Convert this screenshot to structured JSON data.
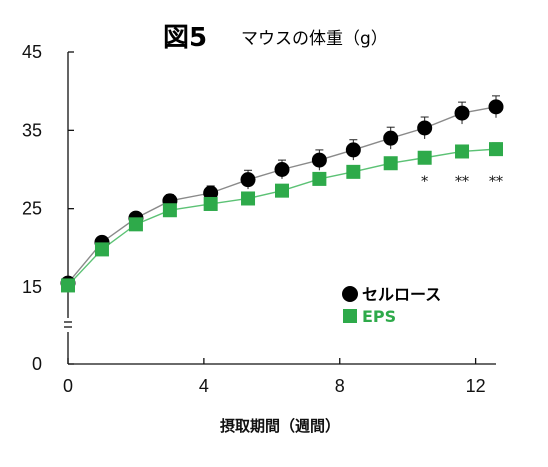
{
  "figure_label": "図5",
  "title": "マウスの体重（g）",
  "colors": {
    "series1": "#000000",
    "series2": "#2eaa4a",
    "series1_line": "#8a8a8a",
    "series2_line": "#5cc275",
    "axis": "#111111"
  },
  "chart_data": {
    "type": "line",
    "xlabel": "摂取期間（週間）",
    "ylabel": "",
    "xlim": [
      0,
      12.6
    ],
    "xticks": [
      0,
      4,
      8,
      12
    ],
    "y_axis_break": true,
    "y_ticks": [
      {
        "value": 0,
        "label": "0"
      },
      {
        "value": 15,
        "label": "15"
      },
      {
        "value": 25,
        "label": "25"
      },
      {
        "value": 35,
        "label": "35"
      },
      {
        "value": 45,
        "label": "45"
      }
    ],
    "upper_ylim": [
      15,
      45
    ],
    "grid": false,
    "legend": "right",
    "series": [
      {
        "name": "セルロース",
        "marker": "circle",
        "x": [
          0,
          1,
          2,
          3,
          4.2,
          5.3,
          6.3,
          7.4,
          8.4,
          9.5,
          10.5,
          11.6,
          12.6
        ],
        "y": [
          15.5,
          20.7,
          23.8,
          26.0,
          27.0,
          28.7,
          30.0,
          31.2,
          32.5,
          34.0,
          35.3,
          37.2,
          38.0
        ],
        "err": [
          0.5,
          0.6,
          0.6,
          0.8,
          0.9,
          1.2,
          1.2,
          1.3,
          1.3,
          1.4,
          1.4,
          1.4,
          1.4
        ]
      },
      {
        "name": "EPS",
        "marker": "square",
        "x": [
          0,
          1,
          2,
          3,
          4.2,
          5.3,
          6.3,
          7.4,
          8.4,
          9.5,
          10.5,
          11.6,
          12.6
        ],
        "y": [
          15.2,
          19.8,
          23.0,
          24.8,
          25.6,
          26.3,
          27.3,
          28.8,
          29.7,
          30.8,
          31.5,
          32.3,
          32.6
        ],
        "err": [
          0.4,
          0.5,
          0.5,
          0.6,
          0.6,
          0.6,
          0.6,
          0.7,
          0.7,
          0.7,
          0.7,
          0.8,
          0.8
        ]
      }
    ],
    "annotations": [
      {
        "x": 10.5,
        "text": "*"
      },
      {
        "x": 11.6,
        "text": "**"
      },
      {
        "x": 12.6,
        "text": "**"
      }
    ]
  }
}
